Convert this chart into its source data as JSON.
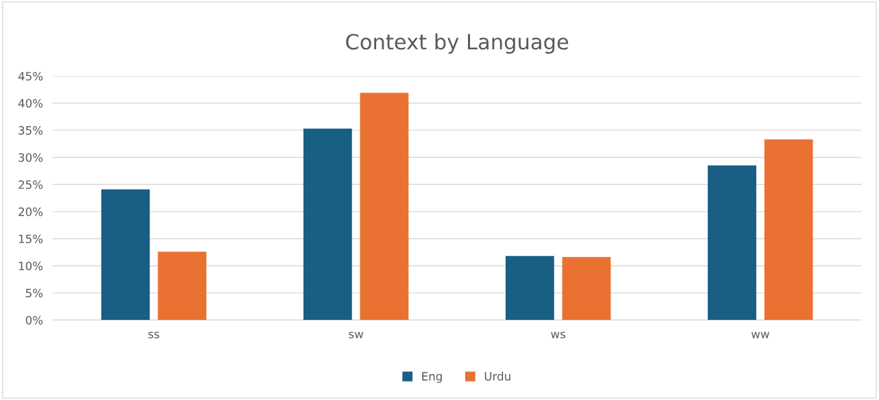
{
  "chart_data": {
    "type": "bar",
    "title": "Context by Language",
    "categories": [
      "ss",
      "sw",
      "ws",
      "ww"
    ],
    "series": [
      {
        "name": "Eng",
        "color": "#195e83",
        "values": [
          24.1,
          35.3,
          11.8,
          28.5
        ]
      },
      {
        "name": "Urdu",
        "color": "#e97132",
        "values": [
          12.6,
          41.9,
          11.6,
          33.3
        ]
      }
    ],
    "ylim": [
      0,
      45
    ],
    "yticks": [
      {
        "value": 0,
        "label": "0%"
      },
      {
        "value": 5,
        "label": "5%"
      },
      {
        "value": 10,
        "label": "10%"
      },
      {
        "value": 15,
        "label": "15%"
      },
      {
        "value": 20,
        "label": "20%"
      },
      {
        "value": 25,
        "label": "25%"
      },
      {
        "value": 30,
        "label": "30%"
      },
      {
        "value": 35,
        "label": "35%"
      },
      {
        "value": 40,
        "label": "40%"
      },
      {
        "value": 45,
        "label": "45%"
      }
    ],
    "grid": "y",
    "legend": "bottom"
  }
}
